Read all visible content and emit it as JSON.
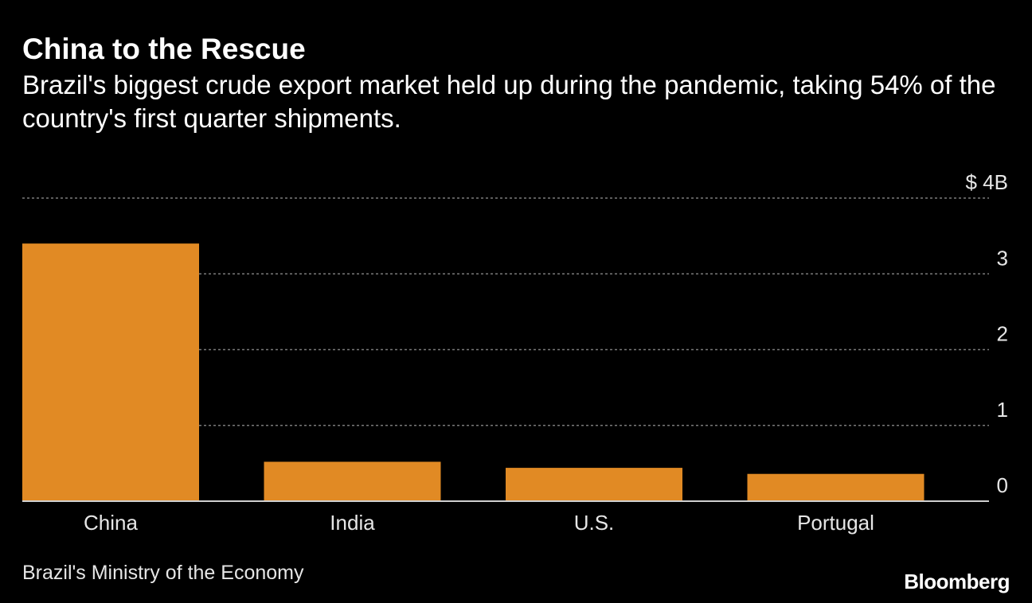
{
  "header": {
    "title": "China to the Rescue",
    "subtitle": "Brazil's biggest crude export market held up during the pandemic, taking 54% of the country's first quarter shipments."
  },
  "chart_data": {
    "type": "bar",
    "categories": [
      "China",
      "India",
      "U.S.",
      "Portugal"
    ],
    "values": [
      3.4,
      0.52,
      0.44,
      0.36
    ],
    "ylim": [
      0,
      4
    ],
    "yticks": [
      {
        "value": 0,
        "label": "0"
      },
      {
        "value": 1,
        "label": "1"
      },
      {
        "value": 2,
        "label": "2"
      },
      {
        "value": 3,
        "label": "3"
      },
      {
        "value": 4,
        "label": "$ 4B"
      }
    ],
    "xlabel": "",
    "ylabel": "",
    "grid": true,
    "bar_color": "#e18a24",
    "grid_color": "#7a7a7a"
  },
  "footer": {
    "source": "Brazil's Ministry of the Economy",
    "logo": "Bloomberg"
  },
  "colors": {
    "background": "#000000",
    "text": "#ffffff",
    "accent": "#e18a24"
  }
}
